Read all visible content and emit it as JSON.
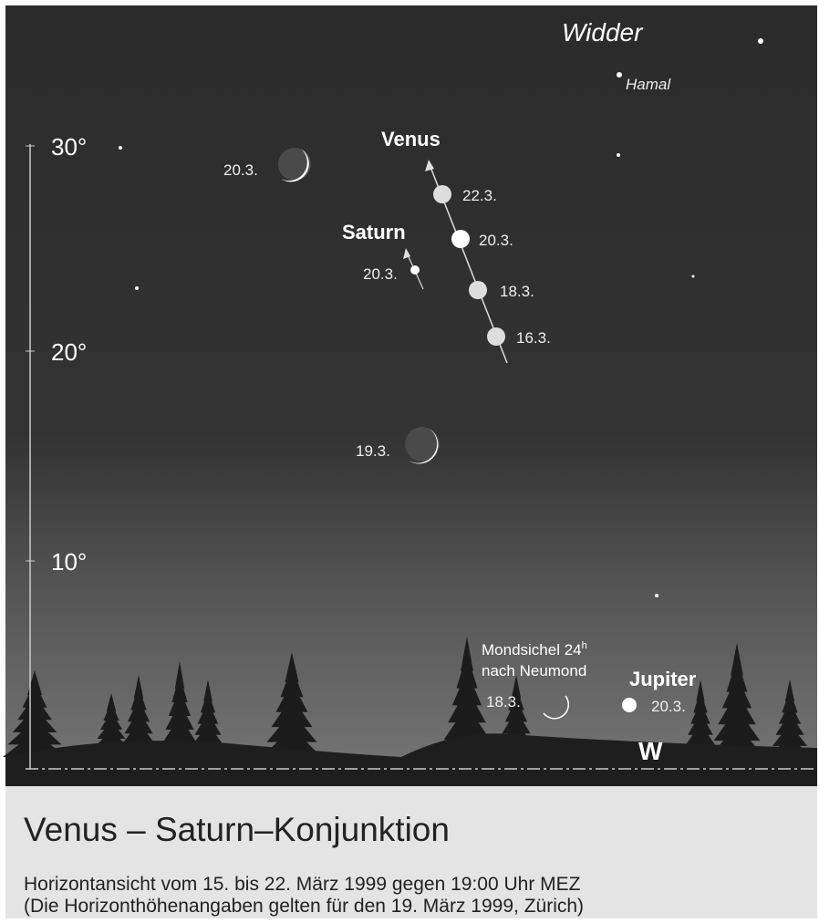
{
  "constellation": "Widder",
  "star": "Hamal",
  "altitude_labels": [
    "30°",
    "20°",
    "10°"
  ],
  "venus": {
    "name": "Venus",
    "dates": [
      "22.3.",
      "20.3.",
      "18.3.",
      "16.3."
    ]
  },
  "saturn": {
    "name": "Saturn",
    "date": "20.3."
  },
  "moon": {
    "dates": [
      "20.3.",
      "19.3."
    ],
    "crescent_note": {
      "line1": "Mondsichel 24",
      "sup": "h",
      "line2": "nach Neumond"
    },
    "crescent_date": "18.3."
  },
  "jupiter": {
    "name": "Jupiter",
    "date": "20.3."
  },
  "direction": "W",
  "caption": {
    "title": "Venus – Saturn–Konjunktion",
    "lines": [
      "Horizontansicht vom 15. bis 22. März 1999 gegen 19:00 Uhr MEZ",
      "(Die Horizonthöhenangaben gelten für den 19. März 1999, Zürich)"
    ]
  }
}
